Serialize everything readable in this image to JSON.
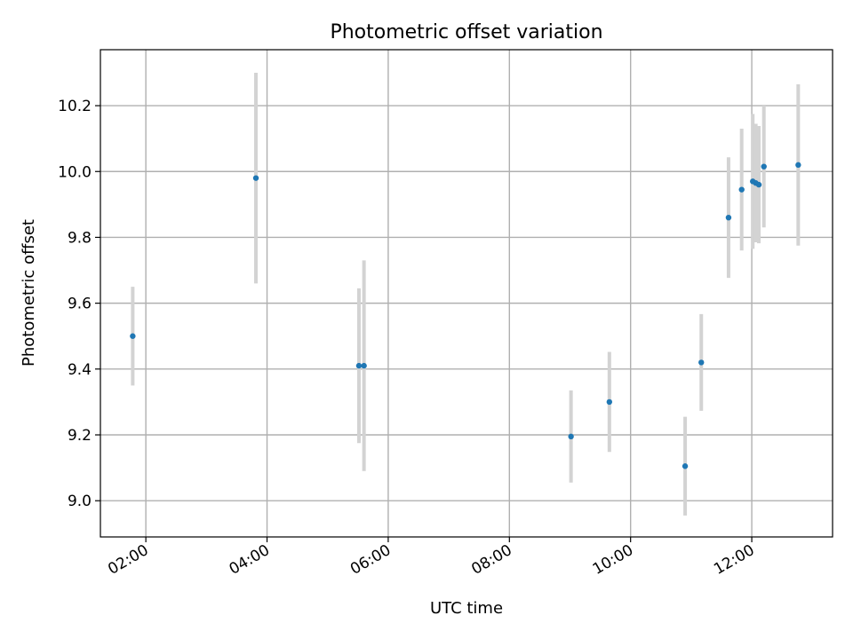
{
  "chart_data": {
    "type": "scatter",
    "title": "Photometric offset variation",
    "xlabel": "UTC time",
    "ylabel": "Photometric offset",
    "x_ticks": [
      "02:00",
      "04:00",
      "06:00",
      "08:00",
      "10:00",
      "12:00"
    ],
    "y_ticks": [
      "9.0",
      "9.2",
      "9.4",
      "9.6",
      "9.8",
      "10.0",
      "10.2"
    ],
    "xlim": [
      "01:15",
      "13:20"
    ],
    "ylim": [
      8.89,
      10.37
    ],
    "grid": true,
    "colors": {
      "points": "#1f77b4",
      "error_bars": "#d3d3d3",
      "grid": "#b0b0b0"
    },
    "series": [
      {
        "points": [
          {
            "x": "01:47",
            "y": 9.5,
            "err": 0.15
          },
          {
            "x": "03:49",
            "y": 9.98,
            "err": 0.32
          },
          {
            "x": "05:31",
            "y": 9.41,
            "err": 0.235
          },
          {
            "x": "05:36",
            "y": 9.41,
            "err": 0.32
          },
          {
            "x": "09:01",
            "y": 9.195,
            "err": 0.14
          },
          {
            "x": "09:39",
            "y": 9.3,
            "err": 0.152
          },
          {
            "x": "10:54",
            "y": 9.105,
            "err": 0.15
          },
          {
            "x": "11:10",
            "y": 9.42,
            "err": 0.147
          },
          {
            "x": "11:37",
            "y": 9.86,
            "err": 0.183
          },
          {
            "x": "11:50",
            "y": 9.945,
            "err": 0.185
          },
          {
            "x": "12:01",
            "y": 9.97,
            "err": 0.205
          },
          {
            "x": "12:04",
            "y": 9.965,
            "err": 0.18
          },
          {
            "x": "12:07",
            "y": 9.96,
            "err": 0.178
          },
          {
            "x": "12:12",
            "y": 10.015,
            "err": 0.185
          },
          {
            "x": "12:46",
            "y": 10.02,
            "err": 0.245
          }
        ]
      }
    ]
  }
}
